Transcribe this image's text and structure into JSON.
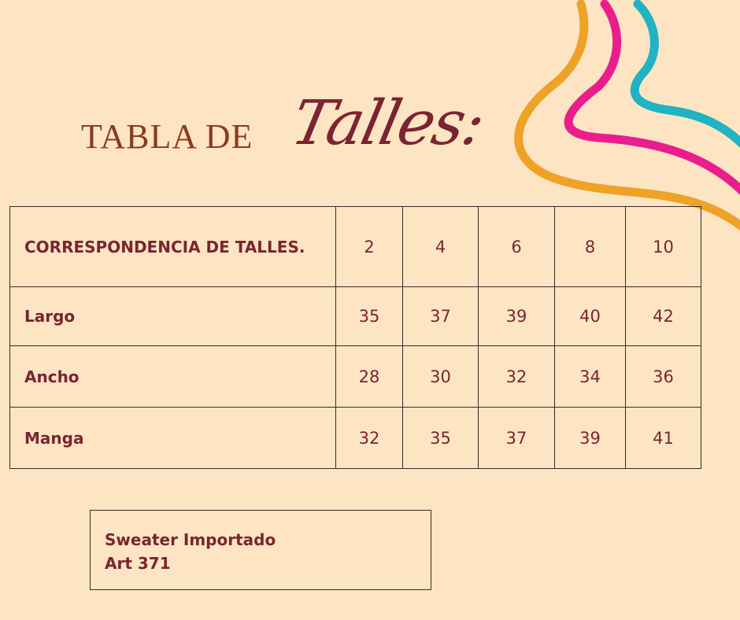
{
  "title": {
    "prefix": "TABLA DE",
    "script": "Talles:"
  },
  "table": {
    "header_label": "CORRESPONDENCIA DE TALLES.",
    "sizes": [
      "2",
      "4",
      "6",
      "8",
      "10"
    ],
    "rows": [
      {
        "label": "Largo",
        "values": [
          "35",
          "37",
          "39",
          "40",
          "42"
        ]
      },
      {
        "label": "Ancho",
        "values": [
          "28",
          "30",
          "32",
          "34",
          "36"
        ]
      },
      {
        "label": "Manga",
        "values": [
          "32",
          "35",
          "37",
          "39",
          "41"
        ]
      }
    ]
  },
  "note": {
    "line1": "Sweater Importado",
    "line2": "Art 371"
  },
  "colors": {
    "background": "#fde5c3",
    "text": "#7a2431",
    "orange": "#eea227",
    "pink": "#e91e8c",
    "teal": "#1fb3c4"
  }
}
